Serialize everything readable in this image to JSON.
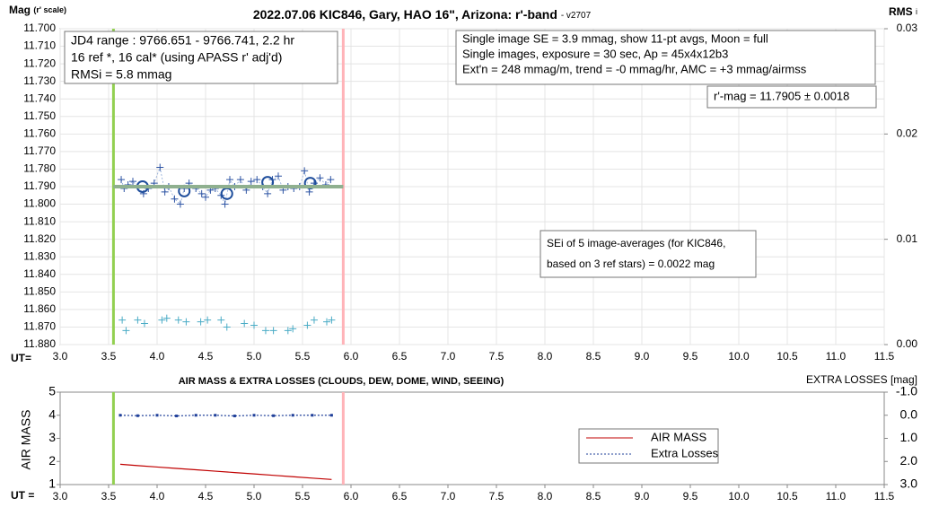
{
  "chart_data": [
    {
      "type": "scatter",
      "title": "2022.07.06 KIC846, Gary, HAO 16\", Arizona: r'-band",
      "subtitle": "- v2707",
      "y_label": "Mag",
      "y_label_note": "(r' scale)",
      "y2_label": "RMS",
      "y2_label_note": "i",
      "x_label": "UT=",
      "xlim": [
        3.0,
        11.5
      ],
      "xticks": [
        {
          "value": 3,
          "label": "3.0"
        },
        {
          "value": 3.5,
          "label": "3.5"
        },
        {
          "value": 4,
          "label": "4.0"
        },
        {
          "value": 4.5,
          "label": "4.5"
        },
        {
          "value": 5,
          "label": "5.0"
        },
        {
          "value": 5.5,
          "label": "5.5"
        },
        {
          "value": 6,
          "label": "6.0"
        },
        {
          "value": 6.5,
          "label": "6.5"
        },
        {
          "value": 7,
          "label": "7.0"
        },
        {
          "value": 7.5,
          "label": "7.5"
        },
        {
          "value": 8,
          "label": "8.0"
        },
        {
          "value": 8.5,
          "label": "8.5"
        },
        {
          "value": 9,
          "label": "9.0"
        },
        {
          "value": 9.5,
          "label": "9.5"
        },
        {
          "value": 10,
          "label": "10.0"
        },
        {
          "value": 10.5,
          "label": "10.5"
        },
        {
          "value": 11,
          "label": "11.0"
        },
        {
          "value": 11.5,
          "label": "11.5"
        }
      ],
      "ylim": [
        11.88,
        11.7
      ],
      "yticks": [
        {
          "value": 11.7,
          "label": "11.700"
        },
        {
          "value": 11.71,
          "label": "11.710"
        },
        {
          "value": 11.72,
          "label": "11.720"
        },
        {
          "value": 11.73,
          "label": "11.730"
        },
        {
          "value": 11.74,
          "label": "11.740"
        },
        {
          "value": 11.75,
          "label": "11.750"
        },
        {
          "value": 11.76,
          "label": "11.760"
        },
        {
          "value": 11.77,
          "label": "11.770"
        },
        {
          "value": 11.78,
          "label": "11.780"
        },
        {
          "value": 11.79,
          "label": "11.790"
        },
        {
          "value": 11.8,
          "label": "11.800"
        },
        {
          "value": 11.81,
          "label": "11.810"
        },
        {
          "value": 11.82,
          "label": "11.820"
        },
        {
          "value": 11.83,
          "label": "11.830"
        },
        {
          "value": 11.84,
          "label": "11.840"
        },
        {
          "value": 11.85,
          "label": "11.850"
        },
        {
          "value": 11.86,
          "label": "11.860"
        },
        {
          "value": 11.87,
          "label": "11.870"
        },
        {
          "value": 11.88,
          "label": "11.880"
        }
      ],
      "y2lim": [
        0,
        0.03
      ],
      "y2ticks": [
        {
          "value": 0,
          "label": "0.00"
        },
        {
          "value": 0.01,
          "label": "0.01"
        },
        {
          "value": 0.02,
          "label": "0.02"
        },
        {
          "value": 0.03,
          "label": "0.03"
        }
      ],
      "grid": true,
      "markers": [
        {
          "x": 3.55,
          "color": "#92d050"
        },
        {
          "x": 5.92,
          "color": "#ffb3b8"
        }
      ],
      "series": [
        {
          "style": "plus",
          "color": "#2f55a4",
          "line": "dotted",
          "x": [
            3.63,
            3.66,
            3.7,
            3.75,
            3.8,
            3.86,
            3.91,
            3.97,
            4.03,
            4.08,
            4.12,
            4.18,
            4.24,
            4.28,
            4.33,
            4.4,
            4.46,
            4.5,
            4.55,
            4.6,
            4.66,
            4.7,
            4.75,
            4.8,
            4.86,
            4.92,
            4.97,
            5.03,
            5.09,
            5.14,
            5.19,
            5.25,
            5.3,
            5.35,
            5.41,
            5.47,
            5.52,
            5.57,
            5.62,
            5.68,
            5.74,
            5.79
          ],
          "values": [
            11.786,
            11.791,
            11.789,
            11.787,
            11.79,
            11.794,
            11.791,
            11.788,
            11.779,
            11.793,
            11.79,
            11.797,
            11.8,
            11.791,
            11.788,
            11.791,
            11.794,
            11.796,
            11.792,
            11.791,
            11.795,
            11.8,
            11.786,
            11.79,
            11.786,
            11.792,
            11.787,
            11.786,
            11.79,
            11.794,
            11.786,
            11.784,
            11.792,
            11.79,
            11.791,
            11.79,
            11.781,
            11.793,
            11.788,
            11.785,
            11.789,
            11.786
          ]
        },
        {
          "style": "circle",
          "color": "#1f4e9c",
          "x": [
            3.85,
            4.28,
            4.72,
            5.14,
            5.58
          ],
          "values": [
            11.79,
            11.7925,
            11.794,
            11.7875,
            11.788
          ]
        },
        {
          "style": "plus",
          "color": "#4bacc6",
          "x": [
            3.64,
            3.68,
            3.8,
            3.87,
            4.05,
            4.1,
            4.22,
            4.3,
            4.45,
            4.52,
            4.66,
            4.72,
            4.9,
            5.0,
            5.12,
            5.2,
            5.35,
            5.4,
            5.55,
            5.62,
            5.75,
            5.8
          ],
          "values": [
            11.866,
            11.872,
            11.866,
            11.868,
            11.866,
            11.865,
            11.866,
            11.867,
            11.867,
            11.866,
            11.866,
            11.87,
            11.868,
            11.869,
            11.872,
            11.872,
            11.872,
            11.871,
            11.869,
            11.866,
            11.867,
            11.866
          ]
        },
        {
          "style": "line",
          "color": "#8fb08f",
          "width": 4,
          "x": [
            3.55,
            5.92
          ],
          "values": [
            11.79,
            11.79
          ]
        }
      ],
      "annotations": [
        {
          "lines": [
            "JD4 range : 9766.651 - 9766.741,  2.2  hr",
            "16 ref *, 16 cal* (using APASS r' adj'd)",
            "RMSi = 5.8 mmag"
          ]
        },
        {
          "lines": [
            "Single image SE = 3.9 mmag, show  11-pt avgs, Moon = full",
            "Single images, exposure = 30 sec, Ap = 45x4x12b3",
            "Ext'n = 248 mmag/m, trend = -0  mmag/hr, AMC = +3 mmag/airmss"
          ]
        },
        {
          "lines": [
            "r'-mag = 11.7905 ± 0.0018"
          ]
        },
        {
          "lines": [
            "SEi of 5 image-averages (for KIC846,",
            "based on 3 ref stars) = 0.0022 mag"
          ]
        }
      ]
    },
    {
      "type": "line",
      "title": "AIR MASS & EXTRA LOSSES (CLOUDS, DEW, DOME, WIND, SEEING)",
      "y_label": "AIR MASS",
      "y2_label": "EXTRA LOSSES [mag]",
      "x_label": "UT =",
      "xlim": [
        3.0,
        11.5
      ],
      "xticks": [
        {
          "value": 3,
          "label": "3.0"
        },
        {
          "value": 3.5,
          "label": "3.5"
        },
        {
          "value": 4,
          "label": "4.0"
        },
        {
          "value": 4.5,
          "label": "4.5"
        },
        {
          "value": 5,
          "label": "5.0"
        },
        {
          "value": 5.5,
          "label": "5.5"
        },
        {
          "value": 6,
          "label": "6.0"
        },
        {
          "value": 6.5,
          "label": "6.5"
        },
        {
          "value": 7,
          "label": "7.0"
        },
        {
          "value": 7.5,
          "label": "7.5"
        },
        {
          "value": 8,
          "label": "8.0"
        },
        {
          "value": 8.5,
          "label": "8.5"
        },
        {
          "value": 9,
          "label": "9.0"
        },
        {
          "value": 9.5,
          "label": "9.5"
        },
        {
          "value": 10,
          "label": "10.0"
        },
        {
          "value": 10.5,
          "label": "10.5"
        },
        {
          "value": 11,
          "label": "11.0"
        },
        {
          "value": 11.5,
          "label": "11.5"
        }
      ],
      "ylim": [
        1,
        5
      ],
      "yticks": [
        1,
        2,
        3,
        4,
        5
      ],
      "y2lim": [
        3.0,
        -1.0
      ],
      "y2ticks": [
        {
          "value": -1,
          "label": "-1.0"
        },
        {
          "value": 0,
          "label": "0.0"
        },
        {
          "value": 1,
          "label": "1.0"
        },
        {
          "value": 2,
          "label": "2.0"
        },
        {
          "value": 3,
          "label": "3.0"
        }
      ],
      "grid": false,
      "markers": [
        {
          "x": 3.55,
          "color": "#92d050"
        },
        {
          "x": 5.92,
          "color": "#ffb3b8"
        }
      ],
      "legend": "center-right",
      "series": [
        {
          "name": "AIR MASS",
          "color": "#c00000",
          "x": [
            3.62,
            3.8,
            4.0,
            4.2,
            4.4,
            4.6,
            4.8,
            5.0,
            5.2,
            5.4,
            5.6,
            5.8
          ],
          "values": [
            1.88,
            1.82,
            1.76,
            1.7,
            1.64,
            1.58,
            1.52,
            1.46,
            1.4,
            1.34,
            1.28,
            1.22
          ]
        },
        {
          "name": "Extra Losses",
          "color": "#1f3f99",
          "axis": "y2",
          "dash": true,
          "x": [
            3.62,
            3.8,
            4.0,
            4.2,
            4.4,
            4.6,
            4.8,
            5.0,
            5.2,
            5.4,
            5.6,
            5.8
          ],
          "values": [
            0.0,
            0.02,
            0.0,
            0.03,
            0.0,
            0.0,
            0.03,
            0.0,
            0.02,
            0.0,
            0.0,
            0.0
          ]
        }
      ]
    }
  ]
}
